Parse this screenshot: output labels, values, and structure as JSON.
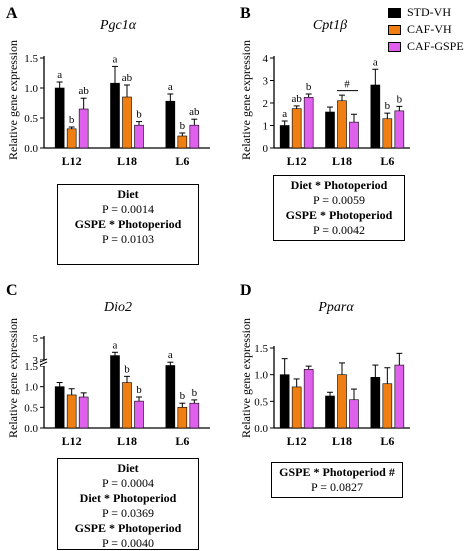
{
  "legend": [
    {
      "label": "STD-VH",
      "color": "#000000"
    },
    {
      "label": "CAF-VH",
      "color": "#f07f13"
    },
    {
      "label": "CAF-GSPE",
      "color": "#e060ee"
    }
  ],
  "chart_data": [
    {
      "type": "bar",
      "panel": "A",
      "title": "Pgc1α",
      "ylabel": "Relative gene expression",
      "categories": [
        "L12",
        "L18",
        "L6"
      ],
      "ylim": [
        0,
        1.5
      ],
      "yticks": [
        "0.0",
        "0.5",
        "1.0",
        "1.5"
      ],
      "series": [
        {
          "name": "STD-VH",
          "values": [
            1.0,
            1.08,
            0.78
          ],
          "errors": [
            0.1,
            0.28,
            0.12
          ],
          "letters": [
            "a",
            "a",
            "a"
          ]
        },
        {
          "name": "CAF-VH",
          "values": [
            0.32,
            0.85,
            0.2
          ],
          "errors": [
            0.03,
            0.2,
            0.05
          ],
          "letters": [
            "b",
            "ab",
            "b"
          ]
        },
        {
          "name": "CAF-GSPE",
          "values": [
            0.65,
            0.38,
            0.38
          ],
          "errors": [
            0.18,
            0.06,
            0.1
          ],
          "letters": [
            "ab",
            "b",
            "ab"
          ]
        }
      ],
      "stats": [
        {
          "term": "Diet",
          "p": "P = 0.0014"
        },
        {
          "term": "GSPE * Photoperiod",
          "p": "P = 0.0103"
        }
      ]
    },
    {
      "type": "bar",
      "panel": "B",
      "title": "Cpt1β",
      "ylabel": "Relative gene expression",
      "categories": [
        "L12",
        "L18",
        "L6"
      ],
      "ylim": [
        0,
        4
      ],
      "yticks": [
        "0",
        "1",
        "2",
        "3",
        "4"
      ],
      "series": [
        {
          "name": "STD-VH",
          "values": [
            1.0,
            1.6,
            2.8
          ],
          "errors": [
            0.2,
            0.22,
            0.7
          ],
          "letters": [
            "a",
            "",
            "a"
          ]
        },
        {
          "name": "CAF-VH",
          "values": [
            1.75,
            2.1,
            1.3
          ],
          "errors": [
            0.12,
            0.25,
            0.25
          ],
          "letters": [
            "ab",
            "",
            "b"
          ]
        },
        {
          "name": "CAF-GSPE",
          "values": [
            2.25,
            1.15,
            1.65
          ],
          "errors": [
            0.15,
            0.35,
            0.2
          ],
          "letters": [
            "b",
            "",
            "b"
          ]
        }
      ],
      "annotation": "#",
      "stats": [
        {
          "term": "Diet * Photoperiod",
          "p": "P = 0.0059"
        },
        {
          "term": "GSPE * Photoperiod",
          "p": "P = 0.0042"
        }
      ]
    },
    {
      "type": "bar",
      "panel": "C",
      "title": "Dio2",
      "ylabel": "Relative gene expression",
      "categories": [
        "L12",
        "L18",
        "L6"
      ],
      "ylim": [
        0,
        5
      ],
      "ybreak": [
        1.5,
        3
      ],
      "yticks": [
        "0.0",
        "0.5",
        "1.0",
        "1.5",
        "3",
        "5"
      ],
      "series": [
        {
          "name": "STD-VH",
          "values": [
            1.0,
            3.4,
            2.5
          ],
          "errors": [
            0.1,
            0.3,
            0.3
          ],
          "letters": [
            "",
            "a",
            "a"
          ]
        },
        {
          "name": "CAF-VH",
          "values": [
            0.8,
            1.1,
            0.5
          ],
          "errors": [
            0.15,
            0.15,
            0.1
          ],
          "letters": [
            "",
            "b",
            "b"
          ]
        },
        {
          "name": "CAF-GSPE",
          "values": [
            0.75,
            0.65,
            0.6
          ],
          "errors": [
            0.1,
            0.1,
            0.08
          ],
          "letters": [
            "",
            "b",
            "b"
          ]
        }
      ],
      "stats": [
        {
          "term": "Diet",
          "p": "P = 0.0004"
        },
        {
          "term": "Diet * Photoperiod",
          "p": "P = 0.0369"
        },
        {
          "term": "GSPE * Photoperiod",
          "p": "P = 0.0040"
        }
      ]
    },
    {
      "type": "bar",
      "panel": "D",
      "title": "Pparα",
      "ylabel": "Relative gene expression",
      "categories": [
        "L12",
        "L18",
        "L6"
      ],
      "ylim": [
        0,
        1.5
      ],
      "yticks": [
        "0.0",
        "0.5",
        "1.0",
        "1.5"
      ],
      "series": [
        {
          "name": "STD-VH",
          "values": [
            1.0,
            0.6,
            0.95
          ],
          "errors": [
            0.3,
            0.07,
            0.23
          ],
          "letters": [
            "",
            "",
            ""
          ]
        },
        {
          "name": "CAF-VH",
          "values": [
            0.77,
            1.0,
            0.83
          ],
          "errors": [
            0.15,
            0.22,
            0.3
          ],
          "letters": [
            "",
            "",
            ""
          ]
        },
        {
          "name": "CAF-GSPE",
          "values": [
            1.1,
            0.53,
            1.18
          ],
          "errors": [
            0.06,
            0.2,
            0.22
          ],
          "letters": [
            "",
            "",
            ""
          ]
        }
      ],
      "stats": [
        {
          "term": "GSPE * Photoperiod #",
          "p": "P = 0.0827"
        }
      ]
    }
  ]
}
